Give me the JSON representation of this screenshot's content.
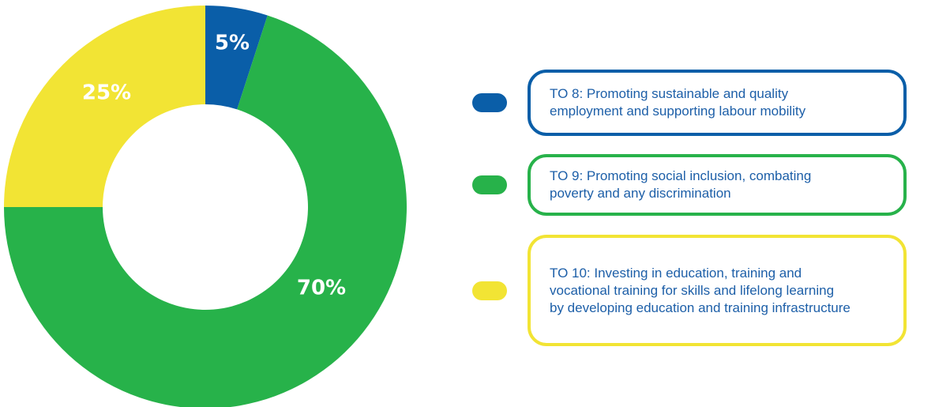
{
  "chart_data": {
    "type": "pie",
    "donut": true,
    "categories": [
      "TO 8: Promoting sustainable and quality\nemployment and supporting labour mobility",
      "TO 9: Promoting social inclusion, combating\npoverty and any discrimination",
      "TO 10: Investing in education, training and\nvocational training for skills and lifelong learning\nby developing education and training infrastructure"
    ],
    "values": [
      5,
      70,
      25
    ],
    "value_labels": [
      "5%",
      "70%",
      "25%"
    ],
    "colors": [
      "#0a5ea8",
      "#27b24a",
      "#f2e434"
    ]
  }
}
